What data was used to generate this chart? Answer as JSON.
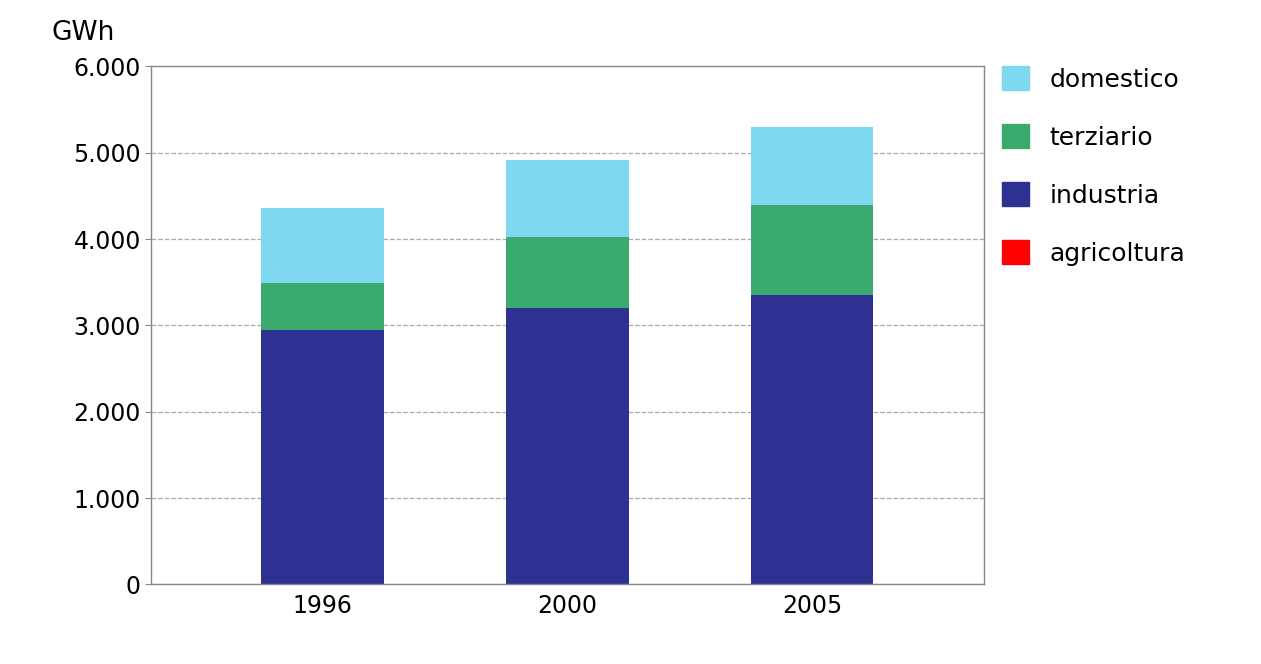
{
  "categories": [
    "1996",
    "2000",
    "2005"
  ],
  "industria": [
    2950,
    3200,
    3350
  ],
  "terziario": [
    540,
    820,
    1050
  ],
  "domestico": [
    870,
    890,
    900
  ],
  "agricoltura": [
    0,
    0,
    0
  ],
  "colors": {
    "industria": "#2E3192",
    "terziario": "#3BAA6E",
    "domestico": "#7ED8F0",
    "agricoltura": "#FF0000"
  },
  "ylabel": "GWh",
  "ylim": [
    0,
    6000
  ],
  "yticks": [
    0,
    1000,
    2000,
    3000,
    4000,
    5000,
    6000
  ],
  "legend_order": [
    "domestico",
    "terziario",
    "industria",
    "agricoltura"
  ],
  "bar_width": 0.5,
  "background_color": "#ffffff",
  "spine_color": "#888888",
  "grid_color": "#aaaaaa",
  "tick_fontsize": 17,
  "legend_fontsize": 18
}
